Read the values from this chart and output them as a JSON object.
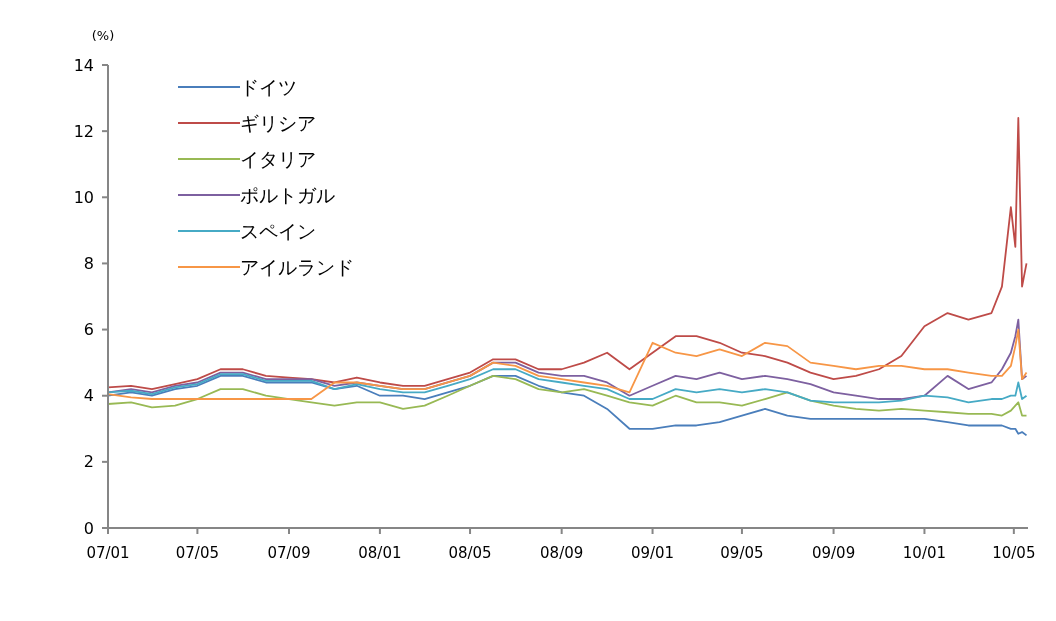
{
  "chart_data": {
    "type": "line",
    "ylabel": "(%)",
    "legend": "top left",
    "grid": false,
    "marker": "none",
    "line_style": "solid",
    "x": [
      "2007-01",
      "2007-02",
      "2007-03",
      "2007-04",
      "2007-05",
      "2007-06",
      "2007-07",
      "2007-08",
      "2007-09",
      "2007-10",
      "2007-11",
      "2007-12",
      "2008-01",
      "2008-02",
      "2008-03",
      "2008-04",
      "2008-05",
      "2008-06",
      "2008-07",
      "2008-08",
      "2008-09",
      "2008-10",
      "2008-11",
      "2008-12",
      "2009-01",
      "2009-02",
      "2009-03",
      "2009-04",
      "2009-05",
      "2009-06",
      "2009-07",
      "2009-08",
      "2009-09",
      "2009-10",
      "2009-11",
      "2009-12",
      "2010-01",
      "2010-02",
      "2010-03",
      "2010-04",
      "2010-04-15",
      "2010-04-27",
      "2010-05-03",
      "2010-05-07",
      "2010-05-12",
      "2010-05-18"
    ],
    "xlim": [
      "2007-01-01",
      "2010-05-20"
    ],
    "xticks": [
      {
        "value": "2007-01",
        "label": "07/01"
      },
      {
        "value": "2007-05",
        "label": "07/05"
      },
      {
        "value": "2007-09",
        "label": "07/09"
      },
      {
        "value": "2008-01",
        "label": "08/01"
      },
      {
        "value": "2008-05",
        "label": "08/05"
      },
      {
        "value": "2008-09",
        "label": "08/09"
      },
      {
        "value": "2009-01",
        "label": "09/01"
      },
      {
        "value": "2009-05",
        "label": "09/05"
      },
      {
        "value": "2009-09",
        "label": "09/09"
      },
      {
        "value": "2010-01",
        "label": "10/01"
      },
      {
        "value": "2010-05",
        "label": "10/05"
      }
    ],
    "ylim": [
      0,
      14
    ],
    "yticks": [
      0,
      2,
      4,
      6,
      8,
      10,
      12,
      14
    ],
    "series": [
      {
        "name": "ドイツ",
        "color": "#4a7ebb",
        "values": [
          4.0,
          4.1,
          4.0,
          4.2,
          4.3,
          4.6,
          4.6,
          4.4,
          4.4,
          4.4,
          4.2,
          4.3,
          4.0,
          4.0,
          3.9,
          4.1,
          4.3,
          4.6,
          4.6,
          4.3,
          4.1,
          4.0,
          3.6,
          3.0,
          3.0,
          3.1,
          3.1,
          3.2,
          3.4,
          3.6,
          3.4,
          3.3,
          3.3,
          3.3,
          3.3,
          3.3,
          3.3,
          3.2,
          3.1,
          3.1,
          3.1,
          3.0,
          3.0,
          2.85,
          2.9,
          2.8
        ]
      },
      {
        "name": "ギリシア",
        "color": "#be4b48",
        "values": [
          4.25,
          4.3,
          4.2,
          4.35,
          4.5,
          4.8,
          4.8,
          4.6,
          4.55,
          4.5,
          4.4,
          4.55,
          4.4,
          4.3,
          4.3,
          4.5,
          4.7,
          5.1,
          5.1,
          4.8,
          4.8,
          5.0,
          5.3,
          4.8,
          5.3,
          5.8,
          5.8,
          5.6,
          5.3,
          5.2,
          5.0,
          4.7,
          4.5,
          4.6,
          4.8,
          5.2,
          6.1,
          6.5,
          6.3,
          6.5,
          7.3,
          9.7,
          8.5,
          12.4,
          7.3,
          8.0
        ]
      },
      {
        "name": "イタリア",
        "color": "#98b954",
        "values": [
          3.75,
          3.8,
          3.65,
          3.7,
          3.9,
          4.2,
          4.2,
          4.0,
          3.9,
          3.8,
          3.7,
          3.8,
          3.8,
          3.6,
          3.7,
          4.0,
          4.3,
          4.6,
          4.5,
          4.2,
          4.1,
          4.2,
          4.0,
          3.8,
          3.7,
          4.0,
          3.8,
          3.8,
          3.7,
          3.9,
          4.1,
          3.85,
          3.7,
          3.6,
          3.55,
          3.6,
          3.55,
          3.5,
          3.45,
          3.45,
          3.4,
          3.55,
          3.7,
          3.8,
          3.4,
          3.4
        ]
      },
      {
        "name": "ポルトガル",
        "color": "#7d60a0",
        "values": [
          4.1,
          4.2,
          4.1,
          4.3,
          4.4,
          4.7,
          4.7,
          4.5,
          4.5,
          4.5,
          4.3,
          4.4,
          4.3,
          4.2,
          4.2,
          4.4,
          4.6,
          5.0,
          5.0,
          4.7,
          4.6,
          4.6,
          4.4,
          4.0,
          4.3,
          4.6,
          4.5,
          4.7,
          4.5,
          4.6,
          4.5,
          4.35,
          4.1,
          4.0,
          3.9,
          3.9,
          4.0,
          4.6,
          4.2,
          4.4,
          4.8,
          5.3,
          5.8,
          6.3,
          4.5,
          4.6
        ]
      },
      {
        "name": "スペイン",
        "color": "#46aac5",
        "values": [
          4.1,
          4.15,
          4.05,
          4.25,
          4.35,
          4.65,
          4.65,
          4.45,
          4.45,
          4.45,
          4.2,
          4.35,
          4.2,
          4.1,
          4.1,
          4.3,
          4.5,
          4.8,
          4.8,
          4.5,
          4.4,
          4.3,
          4.2,
          3.9,
          3.9,
          4.2,
          4.1,
          4.2,
          4.1,
          4.2,
          4.1,
          3.85,
          3.8,
          3.8,
          3.8,
          3.85,
          4.0,
          3.95,
          3.8,
          3.9,
          3.9,
          4.0,
          4.0,
          4.4,
          3.9,
          4.0
        ]
      },
      {
        "name": "アイルランド",
        "color": "#f79646",
        "values": [
          4.05,
          3.95,
          3.9,
          3.9,
          3.9,
          3.9,
          3.9,
          3.9,
          3.9,
          3.9,
          4.4,
          4.4,
          4.3,
          4.2,
          4.2,
          4.4,
          4.6,
          5.0,
          4.9,
          4.6,
          4.5,
          4.4,
          4.3,
          4.1,
          5.6,
          5.3,
          5.2,
          5.4,
          5.2,
          5.6,
          5.5,
          5.0,
          4.9,
          4.8,
          4.9,
          4.9,
          4.8,
          4.8,
          4.7,
          4.6,
          4.6,
          4.9,
          5.5,
          6.0,
          4.5,
          4.7
        ]
      }
    ]
  }
}
